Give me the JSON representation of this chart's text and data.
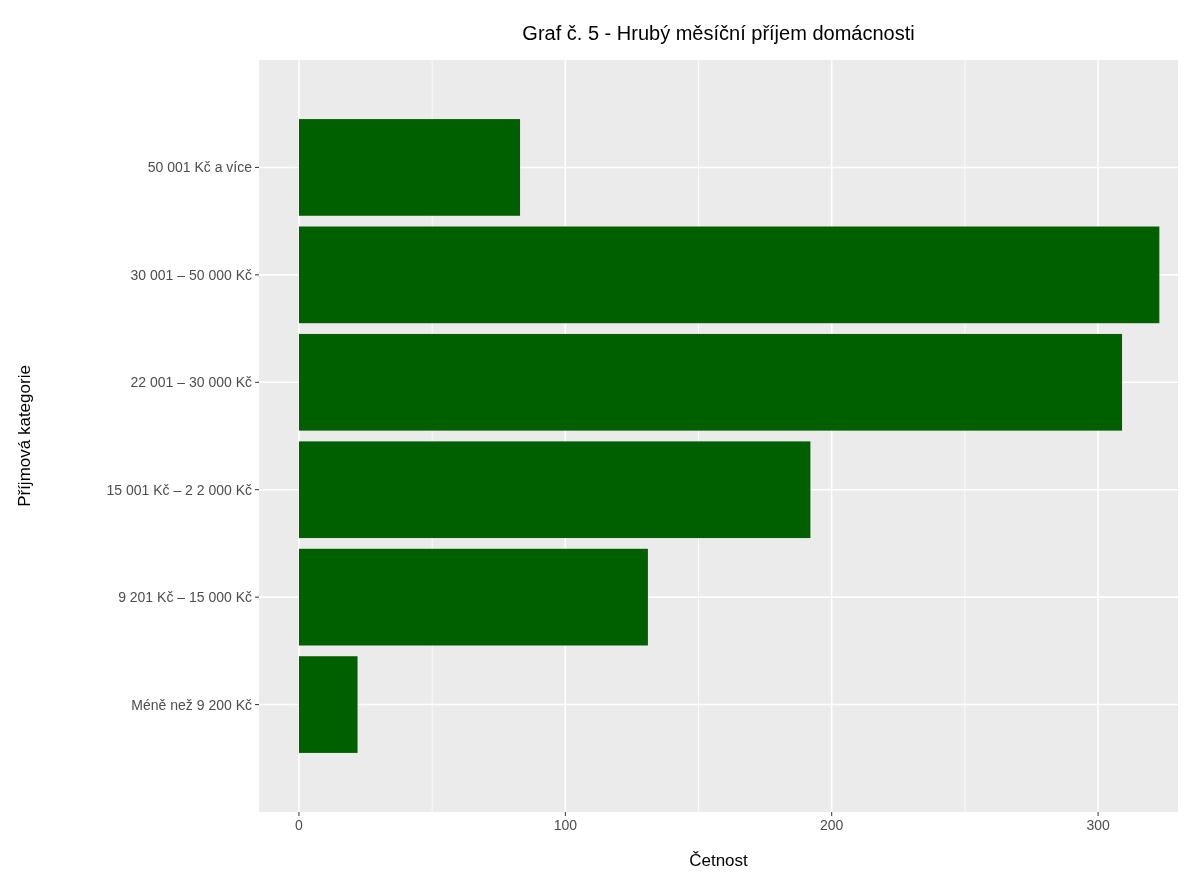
{
  "chart_data": {
    "type": "bar",
    "orientation": "horizontal",
    "title": "Graf č. 5 - Hrubý měsíční příjem domácnosti",
    "xlabel": "Četnost",
    "ylabel": "Příjmová kategorie",
    "categories": [
      "50 001 Kč a více",
      "30 001 – 50 000 Kč",
      "22 001 – 30 000 Kč",
      "15 001 Kč – 2 2 000 Kč",
      "9 201 Kč – 15 000 Kč",
      "Méně než 9 200 Kč"
    ],
    "values": [
      83,
      323,
      309,
      192,
      131,
      22
    ],
    "color": "#006000",
    "xlim": [
      -15,
      330
    ],
    "xticks": [
      0,
      {
        "value": 50,
        "label": null
      },
      100,
      {
        "value": 150,
        "label": null
      },
      200,
      {
        "value": 250,
        "label": null
      },
      300
    ],
    "grid": true
  }
}
